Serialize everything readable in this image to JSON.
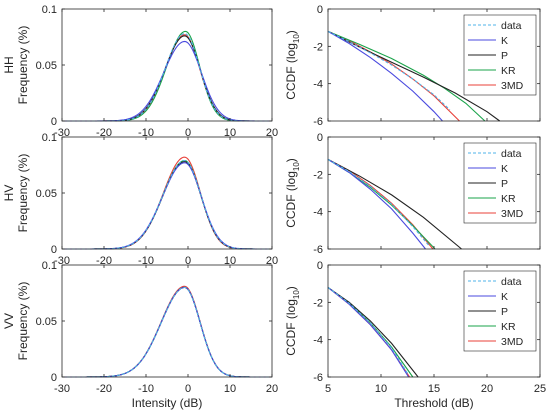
{
  "figure": {
    "left_x_ticks": [
      "-30",
      "-20",
      "-10",
      "0",
      "10",
      "20"
    ],
    "left_x_label": "Intensity (dB)",
    "left_y_label": "Frequency (%)",
    "right_x_ticks": [
      "5",
      "10",
      "15",
      "20",
      "25"
    ],
    "right_x_label": "Threshold (dB)",
    "right_y_label_prefix": "CCDF (log",
    "right_y_label_sub": "10",
    "right_y_label_suffix": ")",
    "row_labels": [
      "HH",
      "HV",
      "VV"
    ]
  },
  "chart_data": [
    {
      "type": "line",
      "panel": "HH-frequency",
      "row_label": "HH",
      "xlabel": "",
      "ylabel": "Frequency (%)",
      "xlim": [
        -30,
        20
      ],
      "ylim": [
        0,
        0.1
      ],
      "yticks": [
        "0",
        "0.05",
        "0.1"
      ],
      "series": [
        {
          "color": "#4fb3e8",
          "style": "dashed",
          "peak": 0.078,
          "mean": -0.8,
          "sigma_left": 4.6,
          "sigma_right": 3.6
        },
        {
          "color": "#4a4adf",
          "style": "solid",
          "peak": 0.071,
          "mean": -0.8,
          "sigma_left": 5.0,
          "sigma_right": 4.0
        },
        {
          "color": "#222222",
          "style": "solid",
          "peak": 0.076,
          "mean": -0.8,
          "sigma_left": 4.7,
          "sigma_right": 3.7
        },
        {
          "color": "#1aa34a",
          "style": "solid",
          "peak": 0.08,
          "mean": -0.6,
          "sigma_left": 4.5,
          "sigma_right": 3.4
        },
        {
          "color": "#e8413a",
          "style": "solid",
          "peak": 0.077,
          "mean": -0.8,
          "sigma_left": 4.6,
          "sigma_right": 3.6
        }
      ]
    },
    {
      "type": "line",
      "panel": "HV-frequency",
      "row_label": "HV",
      "xlabel": "",
      "ylabel": "Frequency (%)",
      "xlim": [
        -30,
        20
      ],
      "ylim": [
        0,
        0.1
      ],
      "yticks": [
        "0",
        "0.05",
        "0.1"
      ],
      "series": [
        {
          "color": "#4fb3e8",
          "style": "dashed",
          "peak": 0.079,
          "mean": -0.8,
          "sigma_left": 5.2,
          "sigma_right": 3.9
        },
        {
          "color": "#4a4adf",
          "style": "solid",
          "peak": 0.077,
          "mean": -0.8,
          "sigma_left": 5.3,
          "sigma_right": 4.0
        },
        {
          "color": "#222222",
          "style": "solid",
          "peak": 0.078,
          "mean": -0.8,
          "sigma_left": 5.2,
          "sigma_right": 3.9
        },
        {
          "color": "#1aa34a",
          "style": "solid",
          "peak": 0.079,
          "mean": -0.8,
          "sigma_left": 5.2,
          "sigma_right": 3.9
        },
        {
          "color": "#e8413a",
          "style": "solid",
          "peak": 0.082,
          "mean": -0.8,
          "sigma_left": 5.1,
          "sigma_right": 3.8
        }
      ]
    },
    {
      "type": "line",
      "panel": "VV-frequency",
      "row_label": "VV",
      "xlabel": "Intensity (dB)",
      "ylabel": "Frequency (%)",
      "xlim": [
        -30,
        20
      ],
      "ylim": [
        0,
        0.1
      ],
      "yticks": [
        "0",
        "0.05",
        "0.1"
      ],
      "series": [
        {
          "color": "#4fb3e8",
          "style": "dashed",
          "peak": 0.08,
          "mean": -0.8,
          "sigma_left": 5.6,
          "sigma_right": 3.7
        },
        {
          "color": "#4a4adf",
          "style": "solid",
          "peak": 0.08,
          "mean": -0.8,
          "sigma_left": 5.6,
          "sigma_right": 3.7
        },
        {
          "color": "#222222",
          "style": "solid",
          "peak": 0.08,
          "mean": -0.8,
          "sigma_left": 5.6,
          "sigma_right": 3.7
        },
        {
          "color": "#1aa34a",
          "style": "solid",
          "peak": 0.08,
          "mean": -0.8,
          "sigma_left": 5.6,
          "sigma_right": 3.7
        },
        {
          "color": "#e8413a",
          "style": "solid",
          "peak": 0.081,
          "mean": -0.8,
          "sigma_left": 5.6,
          "sigma_right": 3.7
        }
      ]
    },
    {
      "type": "line",
      "panel": "HH-ccdf",
      "row_label": "HH",
      "xlabel": "",
      "ylabel": "CCDF (log10)",
      "xlim": [
        5,
        25
      ],
      "ylim": [
        -6,
        0
      ],
      "yticks": [
        "-6",
        "-4",
        "-2",
        "0"
      ],
      "legend": [
        "data",
        "K",
        "P",
        "KR",
        "3MD"
      ],
      "legend_position": "top-right",
      "series": [
        {
          "name": "data",
          "color": "#4fb3e8",
          "style": "dashed",
          "x": [
            5,
            7,
            9,
            11,
            13,
            15,
            16.5
          ],
          "y": [
            -1.2,
            -1.75,
            -2.35,
            -3.0,
            -3.75,
            -4.6,
            -5.4
          ]
        },
        {
          "name": "K",
          "color": "#4a4adf",
          "style": "solid",
          "x": [
            5,
            7,
            9,
            11,
            13,
            15,
            15.8
          ],
          "y": [
            -1.2,
            -1.85,
            -2.6,
            -3.45,
            -4.4,
            -5.5,
            -6.0
          ]
        },
        {
          "name": "P",
          "color": "#222222",
          "style": "solid",
          "x": [
            5,
            8,
            11,
            14,
            17,
            20,
            21.2
          ],
          "y": [
            -1.2,
            -2.05,
            -2.85,
            -3.65,
            -4.5,
            -5.5,
            -6.0
          ]
        },
        {
          "name": "KR",
          "color": "#1aa34a",
          "style": "solid",
          "x": [
            5,
            8,
            11,
            14,
            16,
            18,
            19.8
          ],
          "y": [
            -1.2,
            -1.9,
            -2.65,
            -3.55,
            -4.25,
            -5.05,
            -6.0
          ]
        },
        {
          "name": "3MD",
          "color": "#e8413a",
          "style": "solid",
          "x": [
            5,
            7,
            9,
            11,
            13,
            15,
            17.4
          ],
          "y": [
            -1.2,
            -1.7,
            -2.3,
            -2.95,
            -3.75,
            -4.65,
            -6.0
          ]
        }
      ]
    },
    {
      "type": "line",
      "panel": "HV-ccdf",
      "row_label": "HV",
      "xlabel": "",
      "ylabel": "CCDF (log10)",
      "xlim": [
        5,
        25
      ],
      "ylim": [
        -6,
        0
      ],
      "yticks": [
        "-6",
        "-4",
        "-2",
        "0"
      ],
      "legend": [
        "data",
        "K",
        "P",
        "KR",
        "3MD"
      ],
      "legend_position": "top-right",
      "series": [
        {
          "name": "data",
          "color": "#4fb3e8",
          "style": "dashed",
          "x": [
            5,
            7,
            9,
            11,
            13,
            14.5
          ],
          "y": [
            -1.2,
            -1.85,
            -2.65,
            -3.6,
            -4.8,
            -5.8
          ]
        },
        {
          "name": "K",
          "color": "#4a4adf",
          "style": "solid",
          "x": [
            5,
            7,
            9,
            11,
            13,
            14.2
          ],
          "y": [
            -1.2,
            -1.9,
            -2.8,
            -3.85,
            -5.15,
            -6.0
          ]
        },
        {
          "name": "P",
          "color": "#222222",
          "style": "solid",
          "x": [
            5,
            8,
            11,
            14,
            17.6
          ],
          "y": [
            -1.2,
            -2.1,
            -3.1,
            -4.3,
            -6.0
          ]
        },
        {
          "name": "KR",
          "color": "#1aa34a",
          "style": "solid",
          "x": [
            5,
            7,
            9,
            11,
            13,
            15.1
          ],
          "y": [
            -1.2,
            -1.9,
            -2.7,
            -3.65,
            -4.75,
            -6.0
          ]
        },
        {
          "name": "3MD",
          "color": "#e8413a",
          "style": "solid",
          "x": [
            5,
            7,
            9,
            11,
            13,
            14.9
          ],
          "y": [
            -1.2,
            -1.8,
            -2.6,
            -3.55,
            -4.7,
            -6.0
          ]
        }
      ]
    },
    {
      "type": "line",
      "panel": "VV-ccdf",
      "row_label": "VV",
      "xlabel": "Threshold (dB)",
      "ylabel": "CCDF (log10)",
      "xlim": [
        5,
        25
      ],
      "ylim": [
        -6,
        0
      ],
      "yticks": [
        "-6",
        "-4",
        "-2",
        "0"
      ],
      "legend": [
        "data",
        "K",
        "P",
        "KR",
        "3MD"
      ],
      "legend_position": "top-right",
      "series": [
        {
          "name": "data",
          "color": "#4fb3e8",
          "style": "dashed",
          "x": [
            5,
            7,
            9,
            11,
            12.5
          ],
          "y": [
            -1.2,
            -2.05,
            -3.1,
            -4.45,
            -5.8
          ]
        },
        {
          "name": "K",
          "color": "#4a4adf",
          "style": "solid",
          "x": [
            5,
            7,
            9,
            11,
            12.6
          ],
          "y": [
            -1.2,
            -2.1,
            -3.2,
            -4.55,
            -6.0
          ]
        },
        {
          "name": "P",
          "color": "#222222",
          "style": "solid",
          "x": [
            5,
            7,
            9,
            11,
            13.5
          ],
          "y": [
            -1.2,
            -2.0,
            -3.0,
            -4.2,
            -6.0
          ]
        },
        {
          "name": "KR",
          "color": "#1aa34a",
          "style": "solid",
          "x": [
            5,
            7,
            9,
            11,
            13.0
          ],
          "y": [
            -1.2,
            -2.05,
            -3.1,
            -4.4,
            -6.0
          ]
        },
        {
          "name": "3MD",
          "color": "#e8413a",
          "style": "solid",
          "x": [
            5,
            7,
            9,
            11,
            12.7
          ],
          "y": [
            -1.2,
            -2.1,
            -3.2,
            -4.55,
            -6.0
          ]
        }
      ]
    }
  ]
}
